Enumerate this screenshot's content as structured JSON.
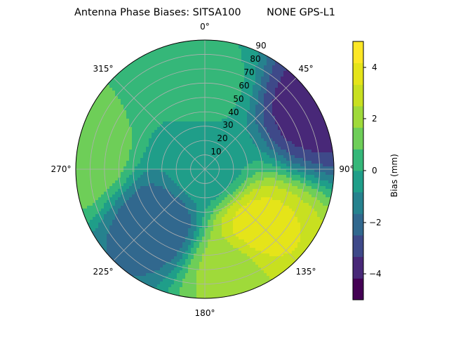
{
  "chart_data": {
    "type": "heatmap",
    "projection": "polar",
    "title": "Antenna Phase Biases: SITSA100        NONE GPS-L1",
    "theta_zero": "N",
    "theta_direction": "clockwise",
    "theta_ticks": [
      "0°",
      "45°",
      "90°",
      "135°",
      "180°",
      "225°",
      "270°",
      "315°"
    ],
    "r_ticks": [
      "10",
      "20",
      "30",
      "40",
      "50",
      "60",
      "70",
      "80",
      "90"
    ],
    "r_range": [
      0,
      90
    ],
    "grid": true,
    "colormap": "viridis",
    "colorbar": {
      "label": "Bias (mm)",
      "ticks": [
        "−4",
        "−2",
        "0",
        "2",
        "4"
      ],
      "range": [
        -5,
        5
      ],
      "levels": [
        -5,
        -4.17,
        -3.33,
        -2.5,
        -1.67,
        -0.83,
        0,
        0.83,
        1.67,
        2.5,
        3.33,
        4.17,
        5
      ],
      "colors": [
        "#440154",
        "#482878",
        "#3e4989",
        "#31688e",
        "#26828e",
        "#1f9e89",
        "#35b779",
        "#6ece58",
        "#9fda3a",
        "#c8e020",
        "#e5e419",
        "#fde725"
      ]
    },
    "field_samples": [
      {
        "azimuth_deg": 0,
        "zenith_deg": 0,
        "bias_mm": -0.5
      },
      {
        "azimuth_deg": 60,
        "zenith_deg": 85,
        "bias_mm": -3.8
      },
      {
        "azimuth_deg": 140,
        "zenith_deg": 55,
        "bias_mm": 3.8
      },
      {
        "azimuth_deg": 165,
        "zenith_deg": 70,
        "bias_mm": 2.0
      },
      {
        "azimuth_deg": 220,
        "zenith_deg": 50,
        "bias_mm": -2.5
      },
      {
        "azimuth_deg": 275,
        "zenith_deg": 85,
        "bias_mm": 1.5
      },
      {
        "azimuth_deg": 0,
        "zenith_deg": 60,
        "bias_mm": 0.3
      }
    ]
  }
}
